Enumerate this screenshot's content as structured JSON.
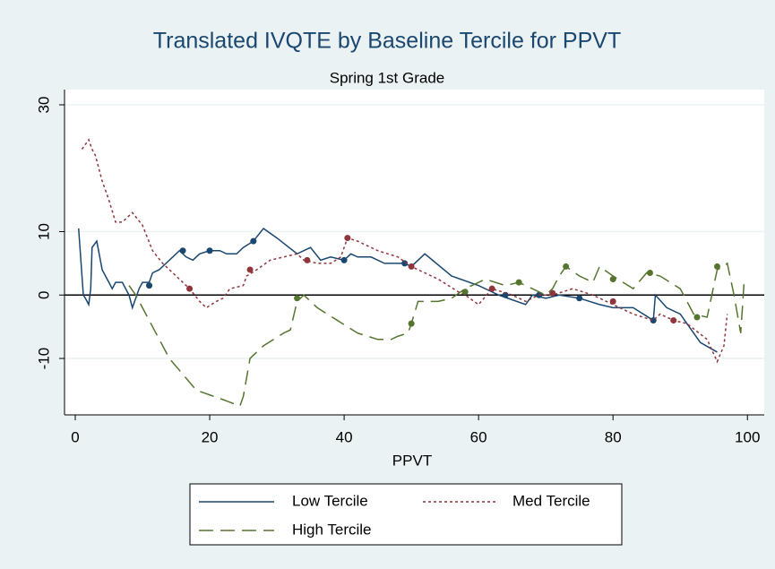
{
  "chart_data": {
    "type": "line",
    "title": "Translated IVQTE by Baseline Tercile for PPVT",
    "subtitle": "Spring 1st Grade",
    "x_label": "PPVT",
    "xlim": [
      -1.6,
      102.5
    ],
    "ylim": [
      -18.9,
      32.4
    ],
    "xticks": [
      0,
      20,
      40,
      60,
      80,
      100
    ],
    "yticks": [
      -10,
      0,
      10,
      30
    ],
    "grid": true,
    "yline": 0,
    "legend_position": "bottom",
    "series": [
      {
        "name": "Low Tercile",
        "color": "#1a476f",
        "dash": "solid",
        "x": [
          0.5,
          1.2,
          1.5,
          2,
          2.3,
          2.5,
          3.2,
          4,
          5,
          5.5,
          6,
          7,
          8,
          8.5,
          9.5,
          10,
          11,
          11.5,
          12.5,
          13.5,
          14.5,
          15.5,
          16.5,
          17.5,
          18.5,
          20,
          21.5,
          22.5,
          24,
          25,
          26.5,
          28,
          30,
          33,
          35,
          36.5,
          38,
          40,
          41,
          42,
          44,
          46,
          49,
          50,
          52,
          56,
          60,
          63,
          67,
          68,
          70,
          72,
          75,
          78,
          80,
          83,
          86,
          86.3,
          88,
          90,
          93,
          95.5
        ],
        "values": [
          10.5,
          0,
          -0.5,
          -1.5,
          1,
          7.5,
          8.5,
          4,
          2,
          1,
          2,
          2,
          0,
          -2,
          1,
          2,
          2,
          3.5,
          4,
          5,
          6,
          7,
          6,
          5.5,
          6.5,
          7,
          7,
          6.5,
          6.5,
          7.5,
          8.5,
          10.5,
          9,
          6.5,
          7.5,
          5.5,
          6,
          5.5,
          6.5,
          6,
          6,
          5,
          5,
          4.5,
          6.5,
          3,
          1.5,
          0,
          -1.5,
          0,
          -0.5,
          0,
          -0.5,
          -1.5,
          -2,
          -2,
          -4,
          0,
          -2,
          -3,
          -7.5,
          -9
        ],
        "markers": {
          "x": [
            11,
            16,
            20,
            26.5,
            40,
            49,
            64,
            69,
            75,
            86
          ],
          "values": [
            1.5,
            7,
            7,
            8.5,
            5.5,
            5,
            0,
            0,
            -0.5,
            -4
          ]
        }
      },
      {
        "name": "Med Tercile",
        "color": "#90353b",
        "dash": "dotted",
        "x": [
          1,
          2,
          2.5,
          3,
          4,
          5,
          6,
          7,
          8.5,
          10,
          11.5,
          13,
          15,
          17,
          18.5,
          19.5,
          21,
          22,
          23,
          25,
          25.5,
          27,
          29,
          31,
          33,
          34,
          36,
          38,
          39.5,
          40.5,
          42,
          45,
          48,
          50,
          54,
          57,
          58,
          60,
          62,
          65,
          67,
          69,
          71,
          74,
          77,
          79,
          83,
          86,
          87,
          89,
          91,
          94,
          95.5,
          96.5,
          97
        ],
        "values": [
          23,
          24.5,
          23,
          22,
          18,
          15,
          11.5,
          11.5,
          13,
          11,
          7,
          5,
          3,
          1,
          -1,
          -2,
          -1,
          -0.5,
          1,
          1.5,
          3,
          4,
          5.5,
          6,
          6.5,
          5.5,
          5,
          5,
          6,
          9,
          8.5,
          7,
          6,
          4.5,
          2.5,
          0.5,
          0,
          -1.5,
          1,
          0,
          -1,
          0,
          0,
          1,
          0,
          -1,
          -3,
          -4,
          -3,
          -4,
          -4.5,
          -7,
          -10.5,
          -8,
          -3
        ],
        "markers": {
          "x": [
            17,
            26,
            34.5,
            40.5,
            50,
            62,
            71,
            80,
            89
          ],
          "values": [
            1,
            4,
            5.5,
            9,
            4.5,
            1,
            0.3,
            -1,
            -4
          ]
        }
      },
      {
        "name": "High Tercile",
        "color": "#55752f",
        "dash": "longdash",
        "x": [
          8,
          9,
          11,
          14,
          18,
          22,
          24.5,
          25,
          26,
          28,
          31,
          32,
          33,
          34,
          36,
          39,
          42,
          45,
          47,
          48,
          49.5,
          50,
          51,
          54,
          56,
          58,
          61,
          64,
          66,
          68,
          70,
          71,
          72,
          73,
          75,
          77,
          78,
          80,
          83,
          85,
          87,
          90,
          92,
          94,
          95.5,
          96.5,
          97,
          98,
          99,
          99.5
        ],
        "values": [
          1.5,
          0,
          -4,
          -10,
          -15,
          -16.5,
          -17.5,
          -16,
          -10,
          -8,
          -6,
          -5.5,
          -1,
          0,
          -2,
          -4,
          -6,
          -7,
          -7,
          -6.5,
          -6,
          -4.5,
          -1,
          -1,
          -0.5,
          1,
          2.5,
          1.5,
          2,
          1,
          0,
          1,
          3,
          4.5,
          3,
          2,
          4.5,
          3,
          1,
          3.5,
          3,
          1,
          -3,
          -3.5,
          4,
          4.5,
          5,
          0,
          -6,
          2
        ],
        "markers": {
          "x": [
            33,
            50,
            58,
            66,
            73,
            80,
            85.5,
            92.5,
            95.5
          ],
          "values": [
            -0.5,
            -4.5,
            0.5,
            2,
            4.5,
            2.5,
            3.5,
            -3.5,
            4.5
          ]
        }
      }
    ]
  }
}
